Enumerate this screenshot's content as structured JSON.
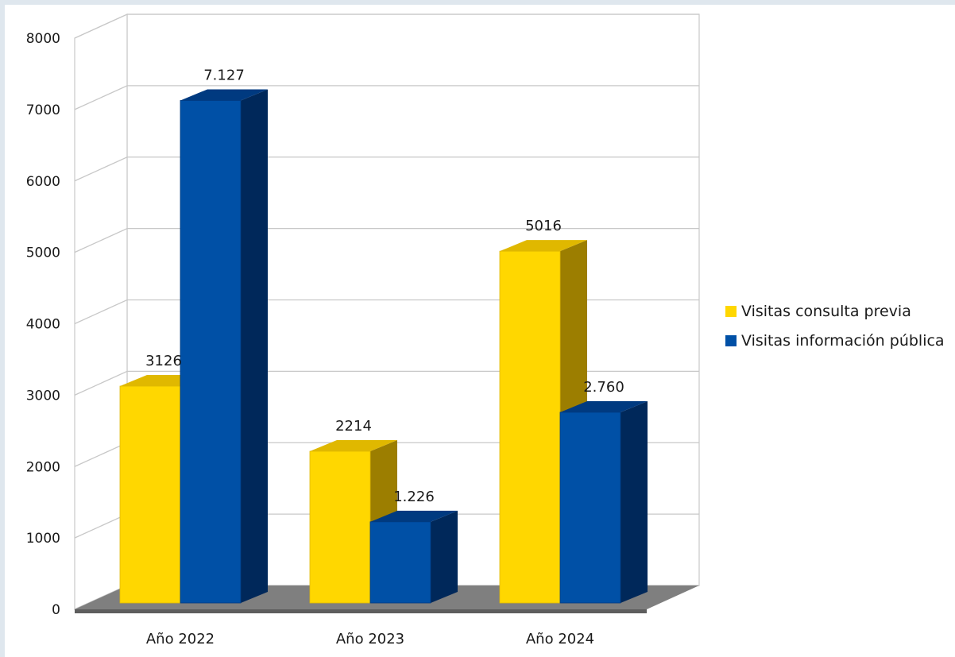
{
  "chart_data": {
    "type": "bar",
    "title": "",
    "xlabel": "",
    "ylabel": "",
    "ylim": [
      0,
      8000
    ],
    "ytick_step": 1000,
    "grid": true,
    "legend_position": "right",
    "categories": [
      "Año 2022",
      "Año 2023",
      "Año 2024"
    ],
    "series": [
      {
        "name": "Visitas consulta previa",
        "values": [
          3126,
          2214,
          5016
        ],
        "labels": [
          "3126",
          "2214",
          "5016"
        ],
        "color": "#FFD700",
        "top_color": "#E0B800",
        "side_color": "#9C7E00"
      },
      {
        "name": "Visitas información pública",
        "values": [
          7127,
          1226,
          2760
        ],
        "labels": [
          "7.127",
          "1.226",
          "2.760"
        ],
        "color": "#0050A6",
        "top_color": "#003A80",
        "side_color": "#00285A"
      }
    ]
  }
}
